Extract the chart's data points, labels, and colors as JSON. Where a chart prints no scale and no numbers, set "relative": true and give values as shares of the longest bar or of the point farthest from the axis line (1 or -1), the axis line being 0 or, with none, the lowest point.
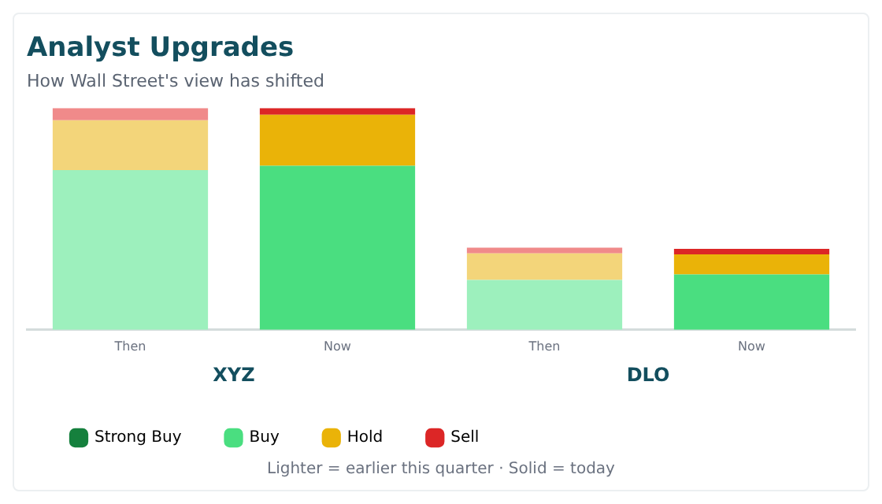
{
  "chart_data": {
    "type": "bar",
    "title": "Analyst Upgrades",
    "subtitle": "How Wall Street's view has shifted",
    "relative": true,
    "stacked": true,
    "legend": "bottom left",
    "categories": [
      "Then",
      "Now",
      "Then",
      "Now"
    ],
    "series": [
      {
        "name": "Strong Buy",
        "color": "#15803d",
        "colors": [
          "#8fd1a5",
          "#15803d",
          "#8fd1a5",
          "#15803d"
        ],
        "values": [
          0,
          0,
          0,
          0
        ]
      },
      {
        "name": "Buy",
        "color": "#4ade80",
        "colors": [
          "#9df0bd",
          "#4ade80",
          "#9df0bd",
          "#4ade80"
        ],
        "values": [
          0.72,
          0.74,
          0.225,
          0.25
        ]
      },
      {
        "name": "Hold",
        "color": "#eab308",
        "colors": [
          "#f3d57a",
          "#eab308",
          "#f3d57a",
          "#eab308"
        ],
        "values": [
          0.225,
          0.23,
          0.12,
          0.09
        ]
      },
      {
        "name": "Sell",
        "color": "#dc2626",
        "colors": [
          "#f08a8a",
          "#dc2626",
          "#f08a8a",
          "#dc2626"
        ],
        "values": [
          0.055,
          0.03,
          0.025,
          0.025
        ]
      }
    ],
    "annotations": [
      "XYZ",
      "DLO",
      "Lighter = earlier this quarter · Solid = today"
    ]
  }
}
